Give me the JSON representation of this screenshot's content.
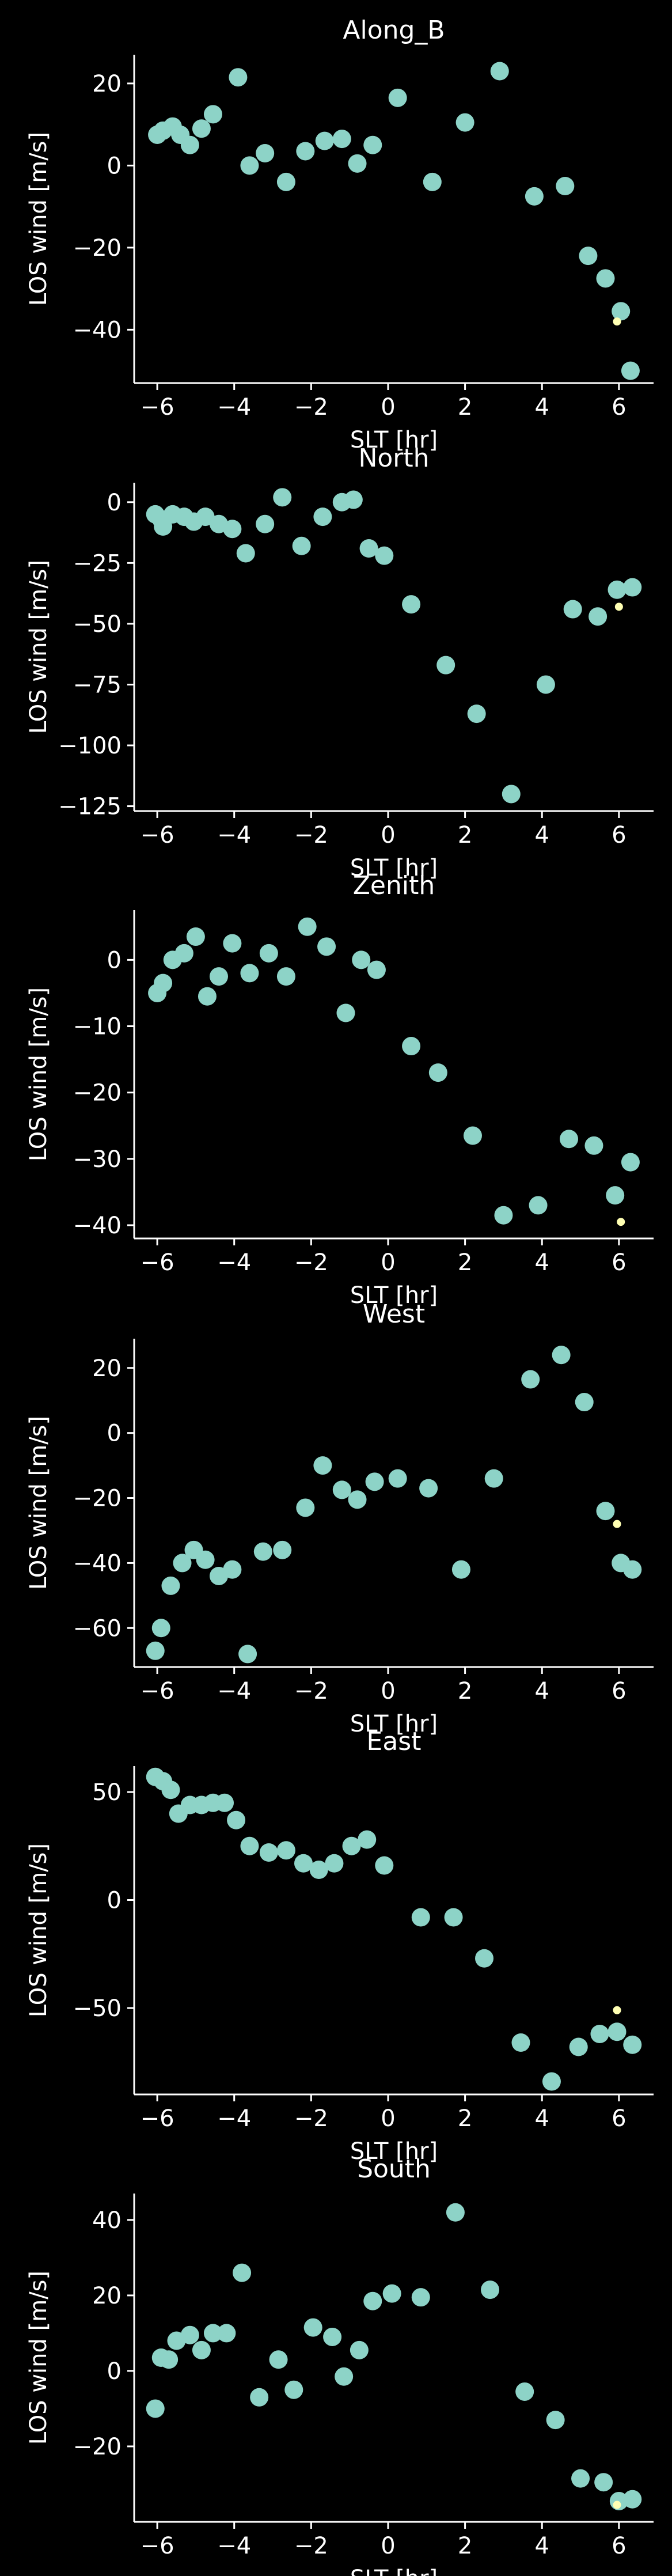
{
  "colors": {
    "background": "#000000",
    "foreground": "#ffffff",
    "series_main": "#8dd3c7",
    "series_highlight": "#ffffb3"
  },
  "chart_data": [
    {
      "type": "scatter",
      "title": "Along_B",
      "xlabel": "SLT [hr]",
      "ylabel": "LOS wind [m/s]",
      "xlim": [
        -6.6,
        6.9
      ],
      "ylim": [
        -53,
        27
      ],
      "xticks": [
        -6,
        -4,
        -2,
        0,
        2,
        4,
        6
      ],
      "yticks": [
        -40,
        -20,
        0,
        20
      ],
      "grid": false,
      "series": [
        {
          "x": [
            -6.0,
            -5.85,
            -5.6,
            -5.4,
            -5.15,
            -4.85,
            -4.55,
            -3.9,
            -3.6,
            -3.2,
            -2.65,
            -2.15,
            -1.65,
            -1.2,
            -0.8,
            -0.4,
            0.25,
            1.15,
            2.0,
            2.9,
            3.8,
            4.6,
            5.2,
            5.65,
            6.05,
            6.3
          ],
          "y": [
            7.5,
            8.5,
            9.5,
            7.5,
            5,
            9,
            12.5,
            21.5,
            0,
            3,
            -4,
            3.5,
            6,
            6.5,
            0.5,
            5,
            16.5,
            -4,
            10.5,
            23,
            -7.5,
            -5,
            -22,
            -27.5,
            -35.5,
            -50
          ]
        },
        {
          "x": [
            5.95
          ],
          "y": [
            -38
          ]
        }
      ]
    },
    {
      "type": "scatter",
      "title": "North",
      "xlabel": "SLT [hr]",
      "ylabel": "LOS wind [m/s]",
      "xlim": [
        -6.6,
        6.9
      ],
      "ylim": [
        -127,
        8
      ],
      "xticks": [
        -6,
        -4,
        -2,
        0,
        2,
        4,
        6
      ],
      "yticks": [
        -125,
        -100,
        -75,
        -50,
        -25,
        0
      ],
      "grid": false,
      "series": [
        {
          "x": [
            -6.05,
            -5.9,
            -5.85,
            -5.6,
            -5.3,
            -5.05,
            -4.75,
            -4.4,
            -4.05,
            -3.7,
            -3.2,
            -2.75,
            -2.25,
            -1.7,
            -1.2,
            -0.9,
            -0.5,
            -0.1,
            0.6,
            1.5,
            2.3,
            3.2,
            4.1,
            4.8,
            5.45,
            5.95,
            6.35
          ],
          "y": [
            -5,
            -7,
            -10,
            -5,
            -6,
            -8,
            -6,
            -9,
            -11,
            -21,
            -9,
            2,
            -18,
            -6,
            0,
            1,
            -19,
            -22,
            -42,
            -67,
            -87,
            -120,
            -75,
            -44,
            -47,
            -36,
            -35
          ]
        },
        {
          "x": [
            6.0
          ],
          "y": [
            -43
          ]
        }
      ]
    },
    {
      "type": "scatter",
      "title": "Zenith",
      "xlabel": "SLT [hr]",
      "ylabel": "LOS wind [m/s]",
      "xlim": [
        -6.6,
        6.9
      ],
      "ylim": [
        -42,
        7.5
      ],
      "xticks": [
        -6,
        -4,
        -2,
        0,
        2,
        4,
        6
      ],
      "yticks": [
        -40,
        -30,
        -20,
        -10,
        0
      ],
      "grid": false,
      "series": [
        {
          "x": [
            -6.0,
            -5.85,
            -5.6,
            -5.3,
            -5.0,
            -4.7,
            -4.4,
            -4.05,
            -3.6,
            -3.1,
            -2.65,
            -2.1,
            -1.6,
            -1.1,
            -0.7,
            -0.3,
            0.6,
            1.3,
            2.2,
            3.0,
            3.9,
            4.7,
            5.35,
            5.9,
            6.3
          ],
          "y": [
            -5,
            -3.5,
            0,
            1,
            3.5,
            -5.5,
            -2.5,
            2.5,
            -2,
            1,
            -2.5,
            5,
            2,
            -8,
            0,
            -1.5,
            -13,
            -17,
            -26.5,
            -38.5,
            -37,
            -27,
            -28,
            -35.5,
            -30.5
          ]
        },
        {
          "x": [
            6.05
          ],
          "y": [
            -39.5
          ]
        }
      ]
    },
    {
      "type": "scatter",
      "title": "West",
      "xlabel": "SLT [hr]",
      "ylabel": "LOS wind [m/s]",
      "xlim": [
        -6.6,
        6.9
      ],
      "ylim": [
        -72,
        29
      ],
      "xticks": [
        -6,
        -4,
        -2,
        0,
        2,
        4,
        6
      ],
      "yticks": [
        -60,
        -40,
        -20,
        0,
        20
      ],
      "grid": false,
      "series": [
        {
          "x": [
            -6.05,
            -5.9,
            -5.65,
            -5.35,
            -5.05,
            -4.75,
            -4.4,
            -4.05,
            -3.65,
            -3.25,
            -2.75,
            -2.15,
            -1.7,
            -1.2,
            -0.8,
            -0.35,
            0.25,
            1.05,
            1.9,
            2.75,
            3.7,
            4.5,
            5.1,
            5.65,
            6.05,
            6.35
          ],
          "y": [
            -67,
            -60,
            -47,
            -40,
            -36,
            -39,
            -44,
            -42,
            -68,
            -36.5,
            -36,
            -23,
            -10,
            -17.5,
            -20.5,
            -15,
            -14,
            -17,
            -42,
            -14,
            16.5,
            24,
            9.5,
            -24,
            -40,
            -42
          ]
        },
        {
          "x": [
            5.95
          ],
          "y": [
            -28
          ]
        }
      ]
    },
    {
      "type": "scatter",
      "title": "East",
      "xlabel": "SLT [hr]",
      "ylabel": "LOS wind [m/s]",
      "xlim": [
        -6.6,
        6.9
      ],
      "ylim": [
        -90,
        62
      ],
      "xticks": [
        -6,
        -4,
        -2,
        0,
        2,
        4,
        6
      ],
      "yticks": [
        -50,
        0,
        50
      ],
      "grid": false,
      "series": [
        {
          "x": [
            -6.05,
            -5.85,
            -5.65,
            -5.45,
            -5.15,
            -4.85,
            -4.55,
            -4.25,
            -3.95,
            -3.6,
            -3.1,
            -2.65,
            -2.2,
            -1.8,
            -1.4,
            -0.95,
            -0.55,
            -0.1,
            0.85,
            1.7,
            2.5,
            3.45,
            4.25,
            4.95,
            5.5,
            5.95,
            6.35
          ],
          "y": [
            57,
            55,
            51,
            40,
            44,
            44,
            45,
            45,
            37,
            25,
            22,
            23,
            17,
            14,
            17,
            25,
            28,
            16,
            -8,
            -8,
            -27,
            -66,
            -84,
            -68,
            -62,
            -61,
            -67
          ]
        },
        {
          "x": [
            5.95
          ],
          "y": [
            -51
          ]
        }
      ]
    },
    {
      "type": "scatter",
      "title": "South",
      "xlabel": "SLT [hr]",
      "ylabel": "LOS wind [m/s]",
      "xlim": [
        -6.6,
        6.9
      ],
      "ylim": [
        -40,
        47
      ],
      "xticks": [
        -6,
        -4,
        -2,
        0,
        2,
        4,
        6
      ],
      "yticks": [
        -20,
        0,
        20,
        40
      ],
      "grid": false,
      "series": [
        {
          "x": [
            -6.05,
            -5.9,
            -5.7,
            -5.5,
            -5.15,
            -4.85,
            -4.55,
            -4.2,
            -3.8,
            -3.35,
            -2.85,
            -2.45,
            -1.95,
            -1.45,
            -1.15,
            -0.75,
            -0.4,
            0.1,
            0.85,
            1.75,
            2.65,
            3.55,
            4.35,
            5.0,
            5.6,
            6.0,
            6.35
          ],
          "y": [
            -10,
            3.5,
            3,
            8,
            9.5,
            5.5,
            10,
            10,
            26,
            -7,
            3,
            -5,
            11.5,
            9,
            -1.5,
            5.5,
            18.5,
            20.5,
            19.5,
            42,
            21.5,
            -5.5,
            -13,
            -28.5,
            -29.5,
            -34.5,
            -34
          ]
        },
        {
          "x": [
            5.95
          ],
          "y": [
            -35.5
          ]
        }
      ]
    }
  ]
}
